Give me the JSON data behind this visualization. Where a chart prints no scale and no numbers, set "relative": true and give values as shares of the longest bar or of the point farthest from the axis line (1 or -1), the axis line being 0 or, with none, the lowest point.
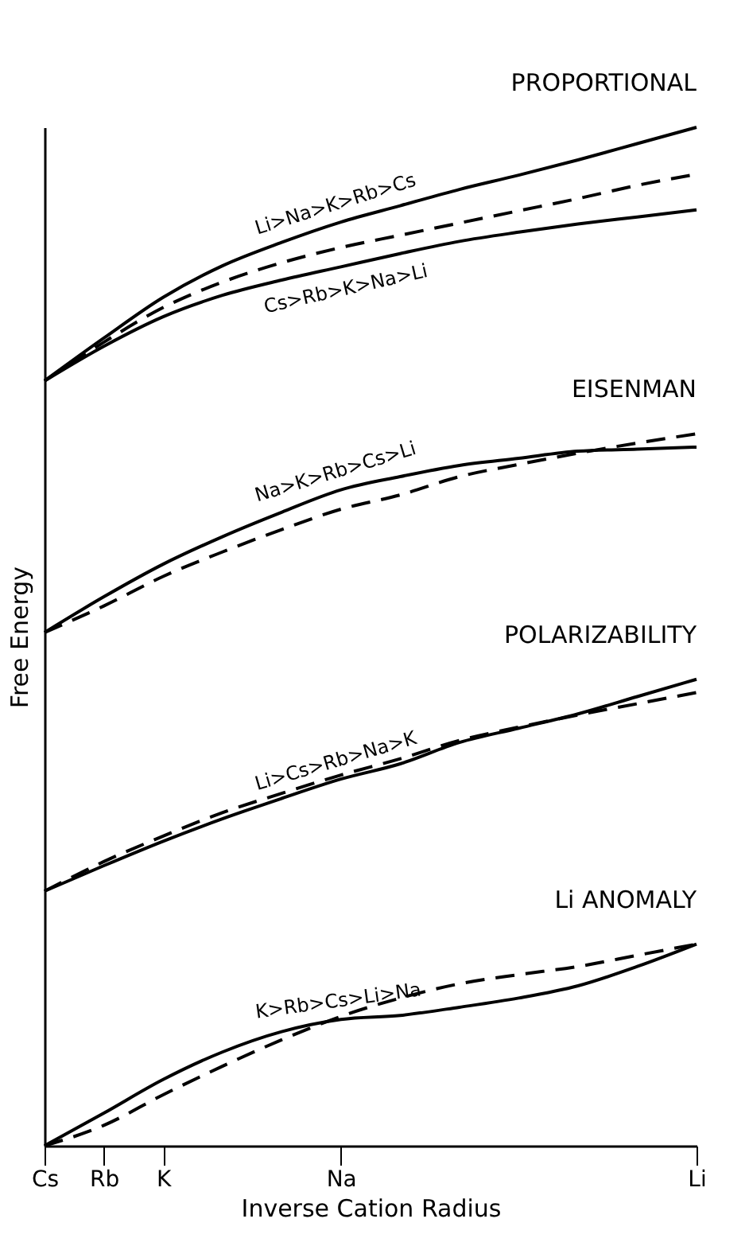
{
  "chart_data": {
    "type": "line",
    "relative": true,
    "xlabel": "Inverse Cation Radius",
    "ylabel": "Free Energy",
    "categories": [
      "Cs",
      "Rb",
      "K",
      null,
      null,
      "Na",
      null,
      null,
      null,
      null,
      null,
      "Li"
    ],
    "series": [
      {
        "name": "Li>Na>K>Rb>Cs",
        "color": "#000000",
        "line_style": "solid",
        "values": [
          0.751,
          0.793,
          0.833,
          0.864,
          0.887,
          0.907,
          0.923,
          0.939,
          0.953,
          0.968,
          0.984,
          1.0
        ]
      },
      {
        "color": "#000000",
        "line_style": "dashed",
        "values": [
          0.751,
          0.789,
          0.823,
          0.848,
          0.867,
          0.882,
          0.894,
          0.906,
          0.918,
          0.93,
          0.943,
          0.954
        ]
      },
      {
        "name": "Cs>Rb>K>Na>Li",
        "color": "#000000",
        "line_style": "solid",
        "values": [
          0.751,
          0.785,
          0.814,
          0.835,
          0.85,
          0.863,
          0.876,
          0.888,
          0.897,
          0.905,
          0.912,
          0.919
        ]
      },
      {
        "name": "Na>K>Rb>Cs>Li",
        "color": "#000000",
        "line_style": "solid",
        "values": [
          0.504,
          0.539,
          0.571,
          0.598,
          0.622,
          0.644,
          0.657,
          0.668,
          0.675,
          0.682,
          0.684,
          0.686
        ]
      },
      {
        "color": "#000000",
        "line_style": "dashed",
        "values": [
          0.504,
          0.53,
          0.559,
          0.583,
          0.605,
          0.625,
          0.639,
          0.657,
          0.669,
          0.68,
          0.69,
          0.699
        ]
      },
      {
        "name": "Li>Cs>Rb>Na>K",
        "color": "#000000",
        "line_style": "solid",
        "values": [
          0.25,
          0.275,
          0.299,
          0.321,
          0.341,
          0.36,
          0.375,
          0.396,
          0.41,
          0.424,
          0.441,
          0.458
        ]
      },
      {
        "color": "#000000",
        "line_style": "dashed",
        "values": [
          0.25,
          0.279,
          0.304,
          0.327,
          0.346,
          0.364,
          0.38,
          0.398,
          0.411,
          0.423,
          0.434,
          0.445
        ]
      },
      {
        "name": "K>Rb>Cs>Li>Na",
        "color": "#000000",
        "line_style": "solid",
        "values": [
          0,
          0.032,
          0.065,
          0.092,
          0.112,
          0.124,
          0.128,
          0.136,
          0.145,
          0.157,
          0.176,
          0.198
        ]
      },
      {
        "color": "#000000",
        "line_style": "dashed",
        "values": [
          0,
          0.02,
          0.05,
          0.078,
          0.104,
          0.127,
          0.145,
          0.159,
          0.168,
          0.176,
          0.187,
          0.198
        ]
      }
    ],
    "annotations": [
      "PROPORTIONAL",
      "EISENMAN",
      "POLARIZABILITY",
      "Li ANOMALY"
    ],
    "grid": false
  }
}
